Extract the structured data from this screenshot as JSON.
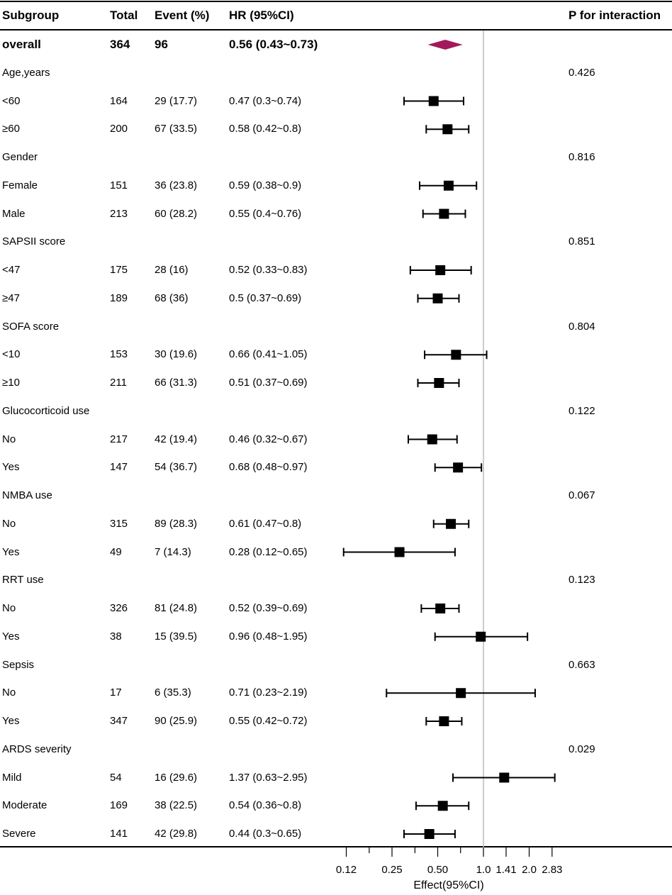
{
  "chart_data": {
    "type": "forest",
    "x_scale": "log2",
    "reference_line": 1.0,
    "headers": {
      "subgroup": "Subgroup",
      "total": "Total",
      "event": "Event (%)",
      "hr": "HR (95%CI)",
      "p": "P for interaction"
    },
    "xlabel": "Effect(95%CI)",
    "ticks": [
      {
        "label": "0.12",
        "value": 0.125
      },
      {
        "label": "0.25",
        "value": 0.25
      },
      {
        "label": "0.50",
        "value": 0.5
      },
      {
        "label": "1.0",
        "value": 1.0
      },
      {
        "label": "1.41",
        "value": 1.41
      },
      {
        "label": "2.0",
        "value": 2.0
      },
      {
        "label": "2.83",
        "value": 2.83
      }
    ],
    "minor_ticks": [
      0.177,
      0.354,
      0.707
    ],
    "rows": [
      {
        "kind": "overall",
        "label": "overall",
        "total": "364",
        "event": "96",
        "hr_text": "0.56 (0.43~0.73)",
        "hr": 0.56,
        "lo": 0.43,
        "hi": 0.73,
        "p": ""
      },
      {
        "kind": "group",
        "label": "Age,years",
        "total": "",
        "event": "",
        "hr_text": "",
        "p": "0.426"
      },
      {
        "kind": "item",
        "label": "<60",
        "total": "164",
        "event": "29 (17.7)",
        "hr_text": "0.47 (0.3~0.74)",
        "hr": 0.47,
        "lo": 0.3,
        "hi": 0.74,
        "p": ""
      },
      {
        "kind": "item",
        "label": "≥60",
        "total": "200",
        "event": "67 (33.5)",
        "hr_text": "0.58 (0.42~0.8)",
        "hr": 0.58,
        "lo": 0.42,
        "hi": 0.8,
        "p": ""
      },
      {
        "kind": "group",
        "label": "Gender",
        "total": "",
        "event": "",
        "hr_text": "",
        "p": "0.816"
      },
      {
        "kind": "item",
        "label": "Female",
        "total": "151",
        "event": "36 (23.8)",
        "hr_text": "0.59 (0.38~0.9)",
        "hr": 0.59,
        "lo": 0.38,
        "hi": 0.9,
        "p": ""
      },
      {
        "kind": "item",
        "label": "Male",
        "total": "213",
        "event": "60 (28.2)",
        "hr_text": "0.55 (0.4~0.76)",
        "hr": 0.55,
        "lo": 0.4,
        "hi": 0.76,
        "p": ""
      },
      {
        "kind": "group",
        "label": "SAPSII score",
        "total": "",
        "event": "",
        "hr_text": "",
        "p": "0.851"
      },
      {
        "kind": "item",
        "label": "<47",
        "total": "175",
        "event": "28 (16)",
        "hr_text": "0.52 (0.33~0.83)",
        "hr": 0.52,
        "lo": 0.33,
        "hi": 0.83,
        "p": ""
      },
      {
        "kind": "item",
        "label": "≥47",
        "total": "189",
        "event": "68 (36)",
        "hr_text": "0.5 (0.37~0.69)",
        "hr": 0.5,
        "lo": 0.37,
        "hi": 0.69,
        "p": ""
      },
      {
        "kind": "group",
        "label": "SOFA score",
        "total": "",
        "event": "",
        "hr_text": "",
        "p": "0.804"
      },
      {
        "kind": "item",
        "label": "<10",
        "total": "153",
        "event": "30 (19.6)",
        "hr_text": "0.66 (0.41~1.05)",
        "hr": 0.66,
        "lo": 0.41,
        "hi": 1.05,
        "p": ""
      },
      {
        "kind": "item",
        "label": "≥10",
        "total": "211",
        "event": "66 (31.3)",
        "hr_text": "0.51 (0.37~0.69)",
        "hr": 0.51,
        "lo": 0.37,
        "hi": 0.69,
        "p": ""
      },
      {
        "kind": "group",
        "label": "Glucocorticoid use",
        "total": "",
        "event": "",
        "hr_text": "",
        "p": "0.122"
      },
      {
        "kind": "item",
        "label": "No",
        "total": "217",
        "event": "42 (19.4)",
        "hr_text": "0.46 (0.32~0.67)",
        "hr": 0.46,
        "lo": 0.32,
        "hi": 0.67,
        "p": ""
      },
      {
        "kind": "item",
        "label": "Yes",
        "total": "147",
        "event": "54 (36.7)",
        "hr_text": "0.68 (0.48~0.97)",
        "hr": 0.68,
        "lo": 0.48,
        "hi": 0.97,
        "p": ""
      },
      {
        "kind": "group",
        "label": "NMBA use",
        "total": "",
        "event": "",
        "hr_text": "",
        "p": "0.067"
      },
      {
        "kind": "item",
        "label": "No",
        "total": "315",
        "event": "89 (28.3)",
        "hr_text": "0.61 (0.47~0.8)",
        "hr": 0.61,
        "lo": 0.47,
        "hi": 0.8,
        "p": ""
      },
      {
        "kind": "item",
        "label": "Yes",
        "total": "49",
        "event": "7 (14.3)",
        "hr_text": "0.28 (0.12~0.65)",
        "hr": 0.28,
        "lo": 0.12,
        "hi": 0.65,
        "p": ""
      },
      {
        "kind": "group",
        "label": "RRT use",
        "total": "",
        "event": "",
        "hr_text": "",
        "p": "0.123"
      },
      {
        "kind": "item",
        "label": "No",
        "total": "326",
        "event": "81 (24.8)",
        "hr_text": "0.52 (0.39~0.69)",
        "hr": 0.52,
        "lo": 0.39,
        "hi": 0.69,
        "p": ""
      },
      {
        "kind": "item",
        "label": "Yes",
        "total": "38",
        "event": "15 (39.5)",
        "hr_text": "0.96 (0.48~1.95)",
        "hr": 0.96,
        "lo": 0.48,
        "hi": 1.95,
        "p": ""
      },
      {
        "kind": "group",
        "label": "Sepsis",
        "total": "",
        "event": "",
        "hr_text": "",
        "p": "0.663"
      },
      {
        "kind": "item",
        "label": "No",
        "total": "17",
        "event": "6 (35.3)",
        "hr_text": "0.71 (0.23~2.19)",
        "hr": 0.71,
        "lo": 0.23,
        "hi": 2.19,
        "p": ""
      },
      {
        "kind": "item",
        "label": "Yes",
        "total": "347",
        "event": "90 (25.9)",
        "hr_text": "0.55 (0.42~0.72)",
        "hr": 0.55,
        "lo": 0.42,
        "hi": 0.72,
        "p": ""
      },
      {
        "kind": "group",
        "label": "ARDS severity",
        "total": "",
        "event": "",
        "hr_text": "",
        "p": "0.029"
      },
      {
        "kind": "item",
        "label": "Mild",
        "total": "54",
        "event": "16 (29.6)",
        "hr_text": "1.37 (0.63~2.95)",
        "hr": 1.37,
        "lo": 0.63,
        "hi": 2.95,
        "p": ""
      },
      {
        "kind": "item",
        "label": "Moderate",
        "total": "169",
        "event": "38 (22.5)",
        "hr_text": "0.54 (0.36~0.8)",
        "hr": 0.54,
        "lo": 0.36,
        "hi": 0.8,
        "p": ""
      },
      {
        "kind": "item",
        "label": "Severe",
        "total": "141",
        "event": "42 (29.8)",
        "hr_text": "0.44 (0.3~0.65)",
        "hr": 0.44,
        "lo": 0.3,
        "hi": 0.65,
        "p": ""
      }
    ],
    "colors": {
      "overall_diamond": "#A3195B",
      "point": "#000000",
      "reference_line": "#BBBBBB"
    }
  }
}
